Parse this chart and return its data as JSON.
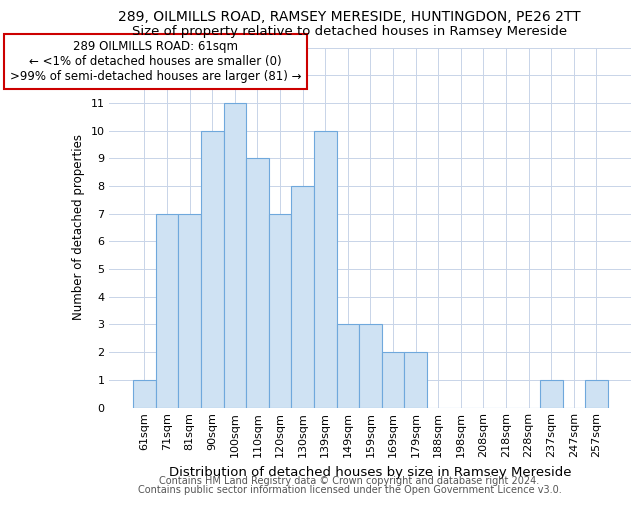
{
  "title1": "289, OILMILLS ROAD, RAMSEY MERESIDE, HUNTINGDON, PE26 2TT",
  "title2": "Size of property relative to detached houses in Ramsey Mereside",
  "xlabel": "Distribution of detached houses by size in Ramsey Mereside",
  "ylabel": "Number of detached properties",
  "categories": [
    "61sqm",
    "71sqm",
    "81sqm",
    "90sqm",
    "100sqm",
    "110sqm",
    "120sqm",
    "130sqm",
    "139sqm",
    "149sqm",
    "159sqm",
    "169sqm",
    "179sqm",
    "188sqm",
    "198sqm",
    "208sqm",
    "218sqm",
    "228sqm",
    "237sqm",
    "247sqm",
    "257sqm"
  ],
  "values": [
    1,
    7,
    7,
    10,
    11,
    9,
    7,
    8,
    10,
    3,
    3,
    2,
    2,
    0,
    0,
    0,
    0,
    0,
    1,
    0,
    1
  ],
  "bar_color": "#cfe2f3",
  "bar_edge_color": "#6fa8dc",
  "annotation_box_text": "289 OILMILLS ROAD: 61sqm\n← <1% of detached houses are smaller (0)\n>99% of semi-detached houses are larger (81) →",
  "annotation_box_color": "#cc0000",
  "ylim": [
    0,
    13
  ],
  "yticks": [
    0,
    1,
    2,
    3,
    4,
    5,
    6,
    7,
    8,
    9,
    10,
    11,
    12,
    13
  ],
  "footer1": "Contains HM Land Registry data © Crown copyright and database right 2024.",
  "footer2": "Contains public sector information licensed under the Open Government Licence v3.0.",
  "background_color": "#ffffff",
  "grid_color": "#c8d4e8",
  "title1_fontsize": 10,
  "title2_fontsize": 9.5,
  "xlabel_fontsize": 9.5,
  "ylabel_fontsize": 8.5,
  "tick_fontsize": 8,
  "footer_fontsize": 7,
  "ann_fontsize": 8.5
}
